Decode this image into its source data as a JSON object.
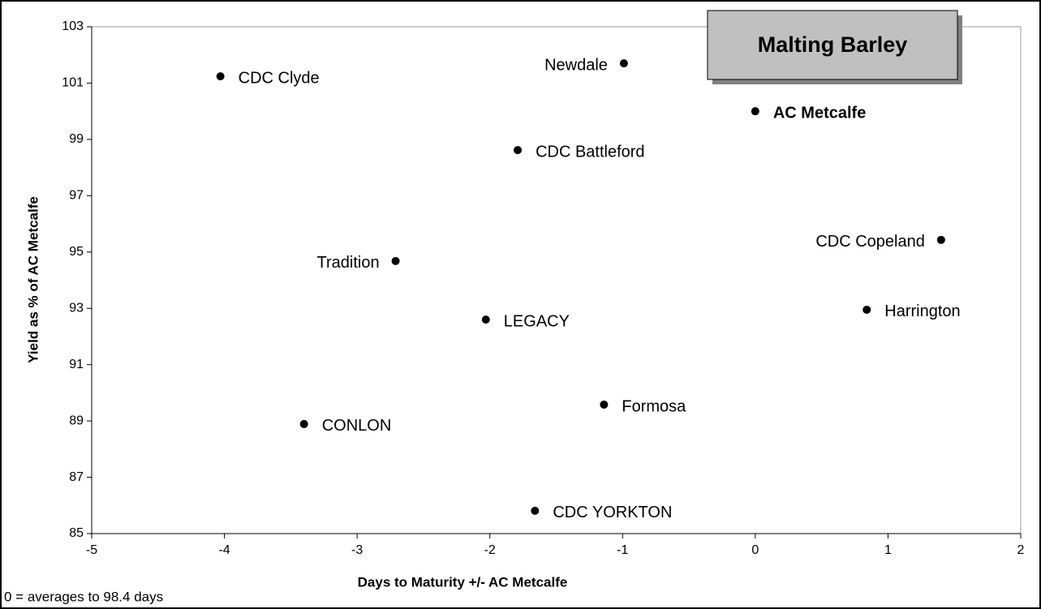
{
  "chart_data": {
    "type": "scatter",
    "title": "Malting Barley",
    "xlabel": "Days to Maturity +/- AC Metcalfe",
    "ylabel": "Yield as % of AC Metcalfe",
    "note": "0 = averages to 98.4 days",
    "labels": [
      "CDC Clyde",
      "Newdale",
      "AC Metcalfe",
      "CDC Battleford",
      "CDC Copeland",
      "Tradition",
      "Harrington",
      "LEGACY",
      "Formosa",
      "CONLON",
      "CDC YORKTON"
    ],
    "x": [
      -4.03,
      -0.99,
      0,
      -1.79,
      1.4,
      -2.71,
      0.84,
      -2.03,
      -1.14,
      -3.4,
      -1.66
    ],
    "y": [
      101.24,
      101.7,
      100,
      98.62,
      95.43,
      94.68,
      92.95,
      92.6,
      89.58,
      88.89,
      85.81
    ],
    "color": "#000000",
    "xlim": [
      -5,
      2
    ],
    "xticks": [
      -5,
      -4,
      -3,
      -2,
      -1,
      0,
      1,
      2
    ],
    "ylim": [
      85,
      103
    ],
    "yticks": [
      85,
      87,
      89,
      91,
      93,
      95,
      97,
      99,
      101,
      103
    ]
  }
}
